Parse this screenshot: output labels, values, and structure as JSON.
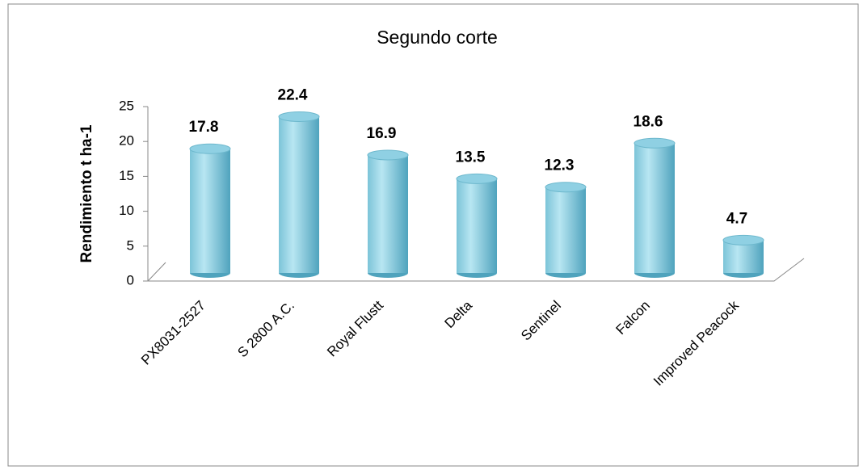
{
  "chart_data": {
    "type": "bar",
    "title": "Segundo corte",
    "y_label": "Rendimiento t ha-1",
    "categories": [
      "PX8031-2527",
      "S 2800 A.C.",
      "Royal Flustt",
      "Delta",
      "Sentinel",
      "Falcon",
      "Improved Peacock"
    ],
    "values": [
      17.8,
      22.4,
      16.9,
      13.5,
      12.3,
      18.6,
      4.7
    ],
    "color": "#8fd0e3",
    "ylim": [
      0,
      25
    ],
    "yticks": [
      0,
      5,
      10,
      15,
      20,
      25
    ],
    "grid": false
  }
}
